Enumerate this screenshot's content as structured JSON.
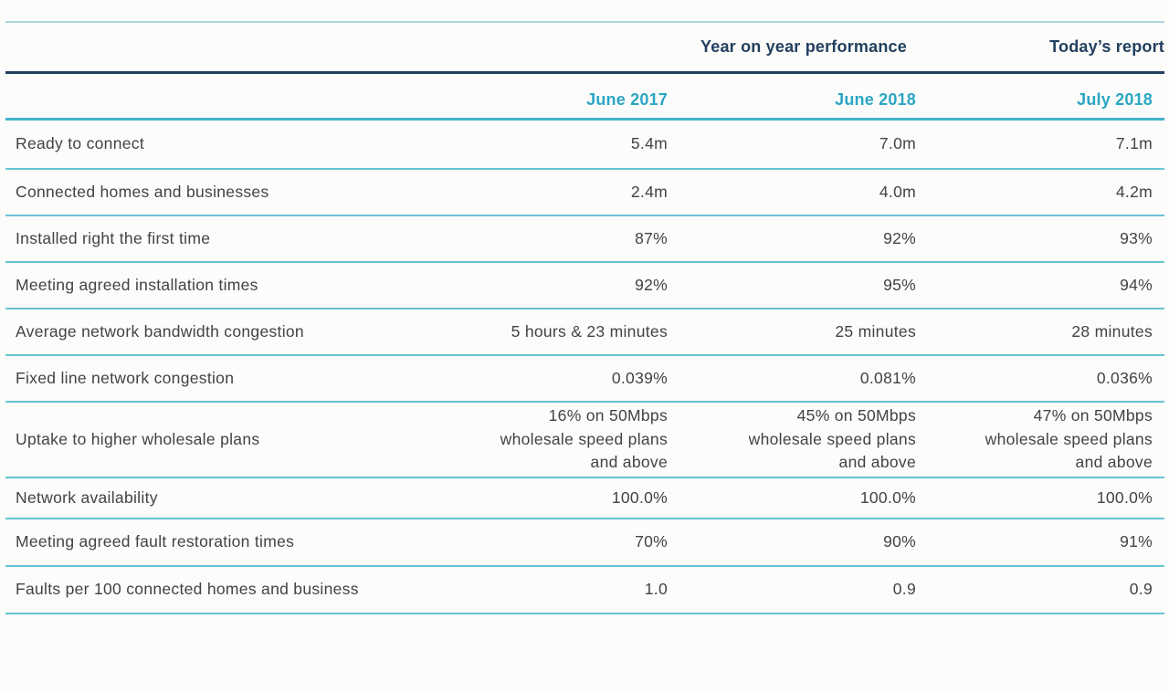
{
  "colors": {
    "navy": "#22405f",
    "cyan_text": "#2ba6c4",
    "line_pale": "#a9d6e0",
    "line_header": "#43b4cb",
    "line_row": "#66c3d3",
    "body_text": "#414344",
    "page_bg": "#fcfcfb"
  },
  "header": {
    "group_left": "Year on year performance",
    "group_right": "Today’s report",
    "columns": [
      "June 2017",
      "June 2018",
      "July 2018"
    ]
  },
  "table": {
    "rows": [
      {
        "label": "Ready to connect",
        "values": [
          "5.4m",
          "7.0m",
          "7.1m"
        ]
      },
      {
        "label": "Connected homes and businesses",
        "values": [
          "2.4m",
          "4.0m",
          "4.2m"
        ]
      },
      {
        "label": "Installed right the first time",
        "values": [
          "87%",
          "92%",
          "93%"
        ]
      },
      {
        "label": "Meeting agreed installation times",
        "values": [
          "92%",
          "95%",
          "94%"
        ]
      },
      {
        "label": "Average network bandwidth congestion",
        "values": [
          "5 hours & 23 minutes",
          "25 minutes",
          "28 minutes"
        ]
      },
      {
        "label": "Fixed line network congestion",
        "values": [
          "0.039%",
          "0.081%",
          "0.036%"
        ]
      },
      {
        "label": "Uptake to higher wholesale plans",
        "values": [
          "16% on 50Mbps\nwholesale speed plans\nand above",
          "45% on 50Mbps\nwholesale speed plans\nand above",
          "47% on 50Mbps\nwholesale speed plans\nand above"
        ]
      },
      {
        "label": "Network availability",
        "values": [
          "100.0%",
          "100.0%",
          "100.0%"
        ]
      },
      {
        "label": "Meeting agreed fault restoration times",
        "values": [
          "70%",
          "90%",
          "91%"
        ]
      },
      {
        "label": "Faults per 100 connected homes and business",
        "values": [
          "1.0",
          "0.9",
          "0.9"
        ]
      }
    ]
  }
}
